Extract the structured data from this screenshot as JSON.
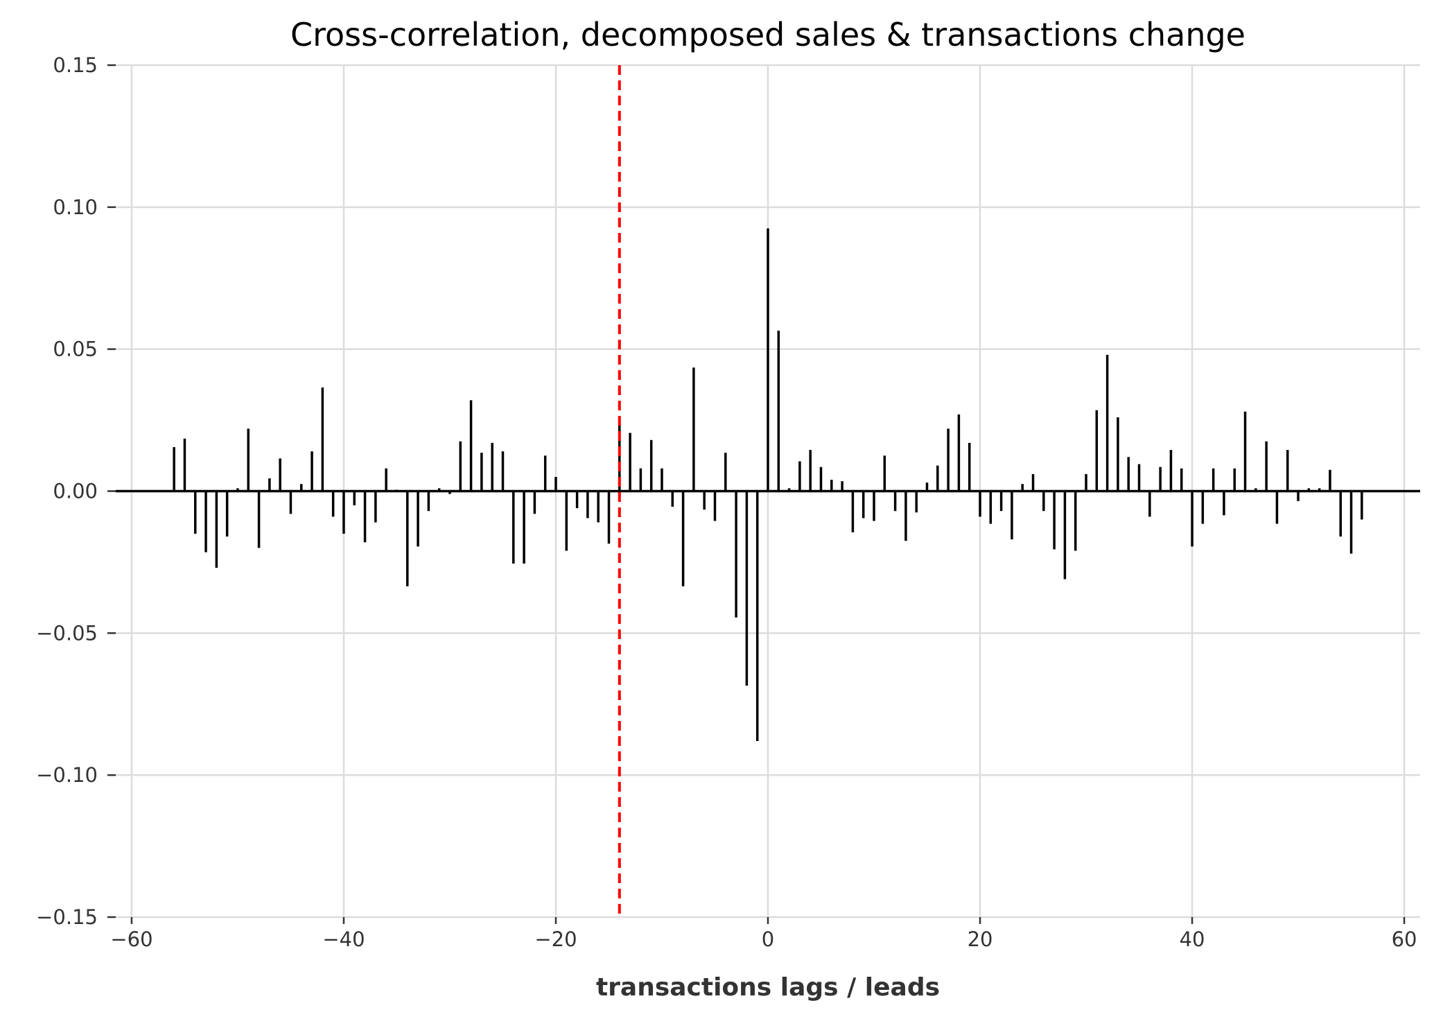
{
  "chart_data": {
    "type": "bar",
    "title": "Cross-correlation, decomposed sales & transactions change",
    "xlabel": "transactions lags / leads",
    "ylabel": "",
    "xlim": [
      -61.5,
      61.5
    ],
    "ylim": [
      -0.15,
      0.15
    ],
    "x_ticks": [
      -60,
      -40,
      -20,
      0,
      20,
      40,
      60
    ],
    "x_tick_labels": [
      "−60",
      "−40",
      "−20",
      "0",
      "20",
      "40",
      "60"
    ],
    "y_ticks": [
      0.15,
      0.1,
      0.05,
      0.0,
      -0.05,
      -0.1,
      -0.15
    ],
    "y_tick_labels": [
      "0.15",
      "0.10",
      "0.05",
      "0.00",
      "−0.05",
      "−0.10",
      "−0.15"
    ],
    "grid": true,
    "bar_color": "#000000",
    "reference_line": {
      "x": -14,
      "color": "#ff0000",
      "style": "dashed"
    },
    "series": [
      {
        "x": [
          -56,
          -55,
          -54,
          -53,
          -52,
          -51,
          -50,
          -49,
          -48,
          -47,
          -46,
          -45,
          -44,
          -43,
          -42,
          -41,
          -40,
          -39,
          -38,
          -37,
          -36,
          -35,
          -34,
          -33,
          -32,
          -31,
          -30,
          -29,
          -28,
          -27,
          -26,
          -25,
          -24,
          -23,
          -22,
          -21,
          -20,
          -19,
          -18,
          -17,
          -16,
          -15,
          -14,
          -13,
          -12,
          -11,
          -10,
          -9,
          -8,
          -7,
          -6,
          -5,
          -4,
          -3,
          -2,
          -1,
          0,
          1,
          2,
          3,
          4,
          5,
          6,
          7,
          8,
          9,
          10,
          11,
          12,
          13,
          14,
          15,
          16,
          17,
          18,
          19,
          20,
          21,
          22,
          23,
          24,
          25,
          26,
          27,
          28,
          29,
          30,
          31,
          32,
          33,
          34,
          35,
          36,
          37,
          38,
          39,
          40,
          41,
          42,
          43,
          44,
          45,
          46,
          47,
          48,
          49,
          50,
          51,
          52,
          53,
          54,
          55,
          56
        ],
        "values": [
          0.0155,
          0.0185,
          -0.015,
          -0.0215,
          -0.027,
          -0.016,
          0.001,
          0.022,
          -0.02,
          0.0045,
          0.0115,
          -0.008,
          0.0025,
          0.014,
          0.0365,
          -0.009,
          -0.015,
          -0.005,
          -0.018,
          -0.011,
          0.008,
          0.0005,
          -0.0335,
          -0.0195,
          -0.007,
          0.001,
          -0.001,
          0.0175,
          0.032,
          0.0135,
          0.017,
          0.014,
          -0.0255,
          -0.0255,
          -0.008,
          0.0125,
          0.005,
          -0.021,
          -0.006,
          -0.0095,
          -0.011,
          -0.0185,
          0.026,
          0.0205,
          0.008,
          0.018,
          0.008,
          -0.0055,
          -0.0335,
          0.0435,
          -0.0065,
          -0.0105,
          0.0135,
          -0.0445,
          -0.0685,
          -0.088,
          0.0925,
          0.0565,
          0.001,
          0.0105,
          0.0145,
          0.0085,
          0.004,
          0.0035,
          -0.0145,
          -0.0095,
          -0.0105,
          0.0125,
          -0.007,
          -0.0175,
          -0.0075,
          0.003,
          0.009,
          0.022,
          0.027,
          0.017,
          -0.009,
          -0.0115,
          -0.007,
          -0.017,
          0.0025,
          0.006,
          -0.007,
          -0.0205,
          -0.031,
          -0.021,
          0.006,
          0.0285,
          0.048,
          0.026,
          0.012,
          0.0095,
          -0.009,
          0.0085,
          0.0145,
          0.008,
          -0.0195,
          -0.0115,
          0.008,
          -0.0085,
          0.008,
          0.028,
          0.001,
          0.0175,
          -0.0115,
          0.0145,
          -0.0035,
          0.001,
          0.001,
          0.0075,
          -0.016,
          -0.022,
          -0.01
        ]
      }
    ]
  }
}
